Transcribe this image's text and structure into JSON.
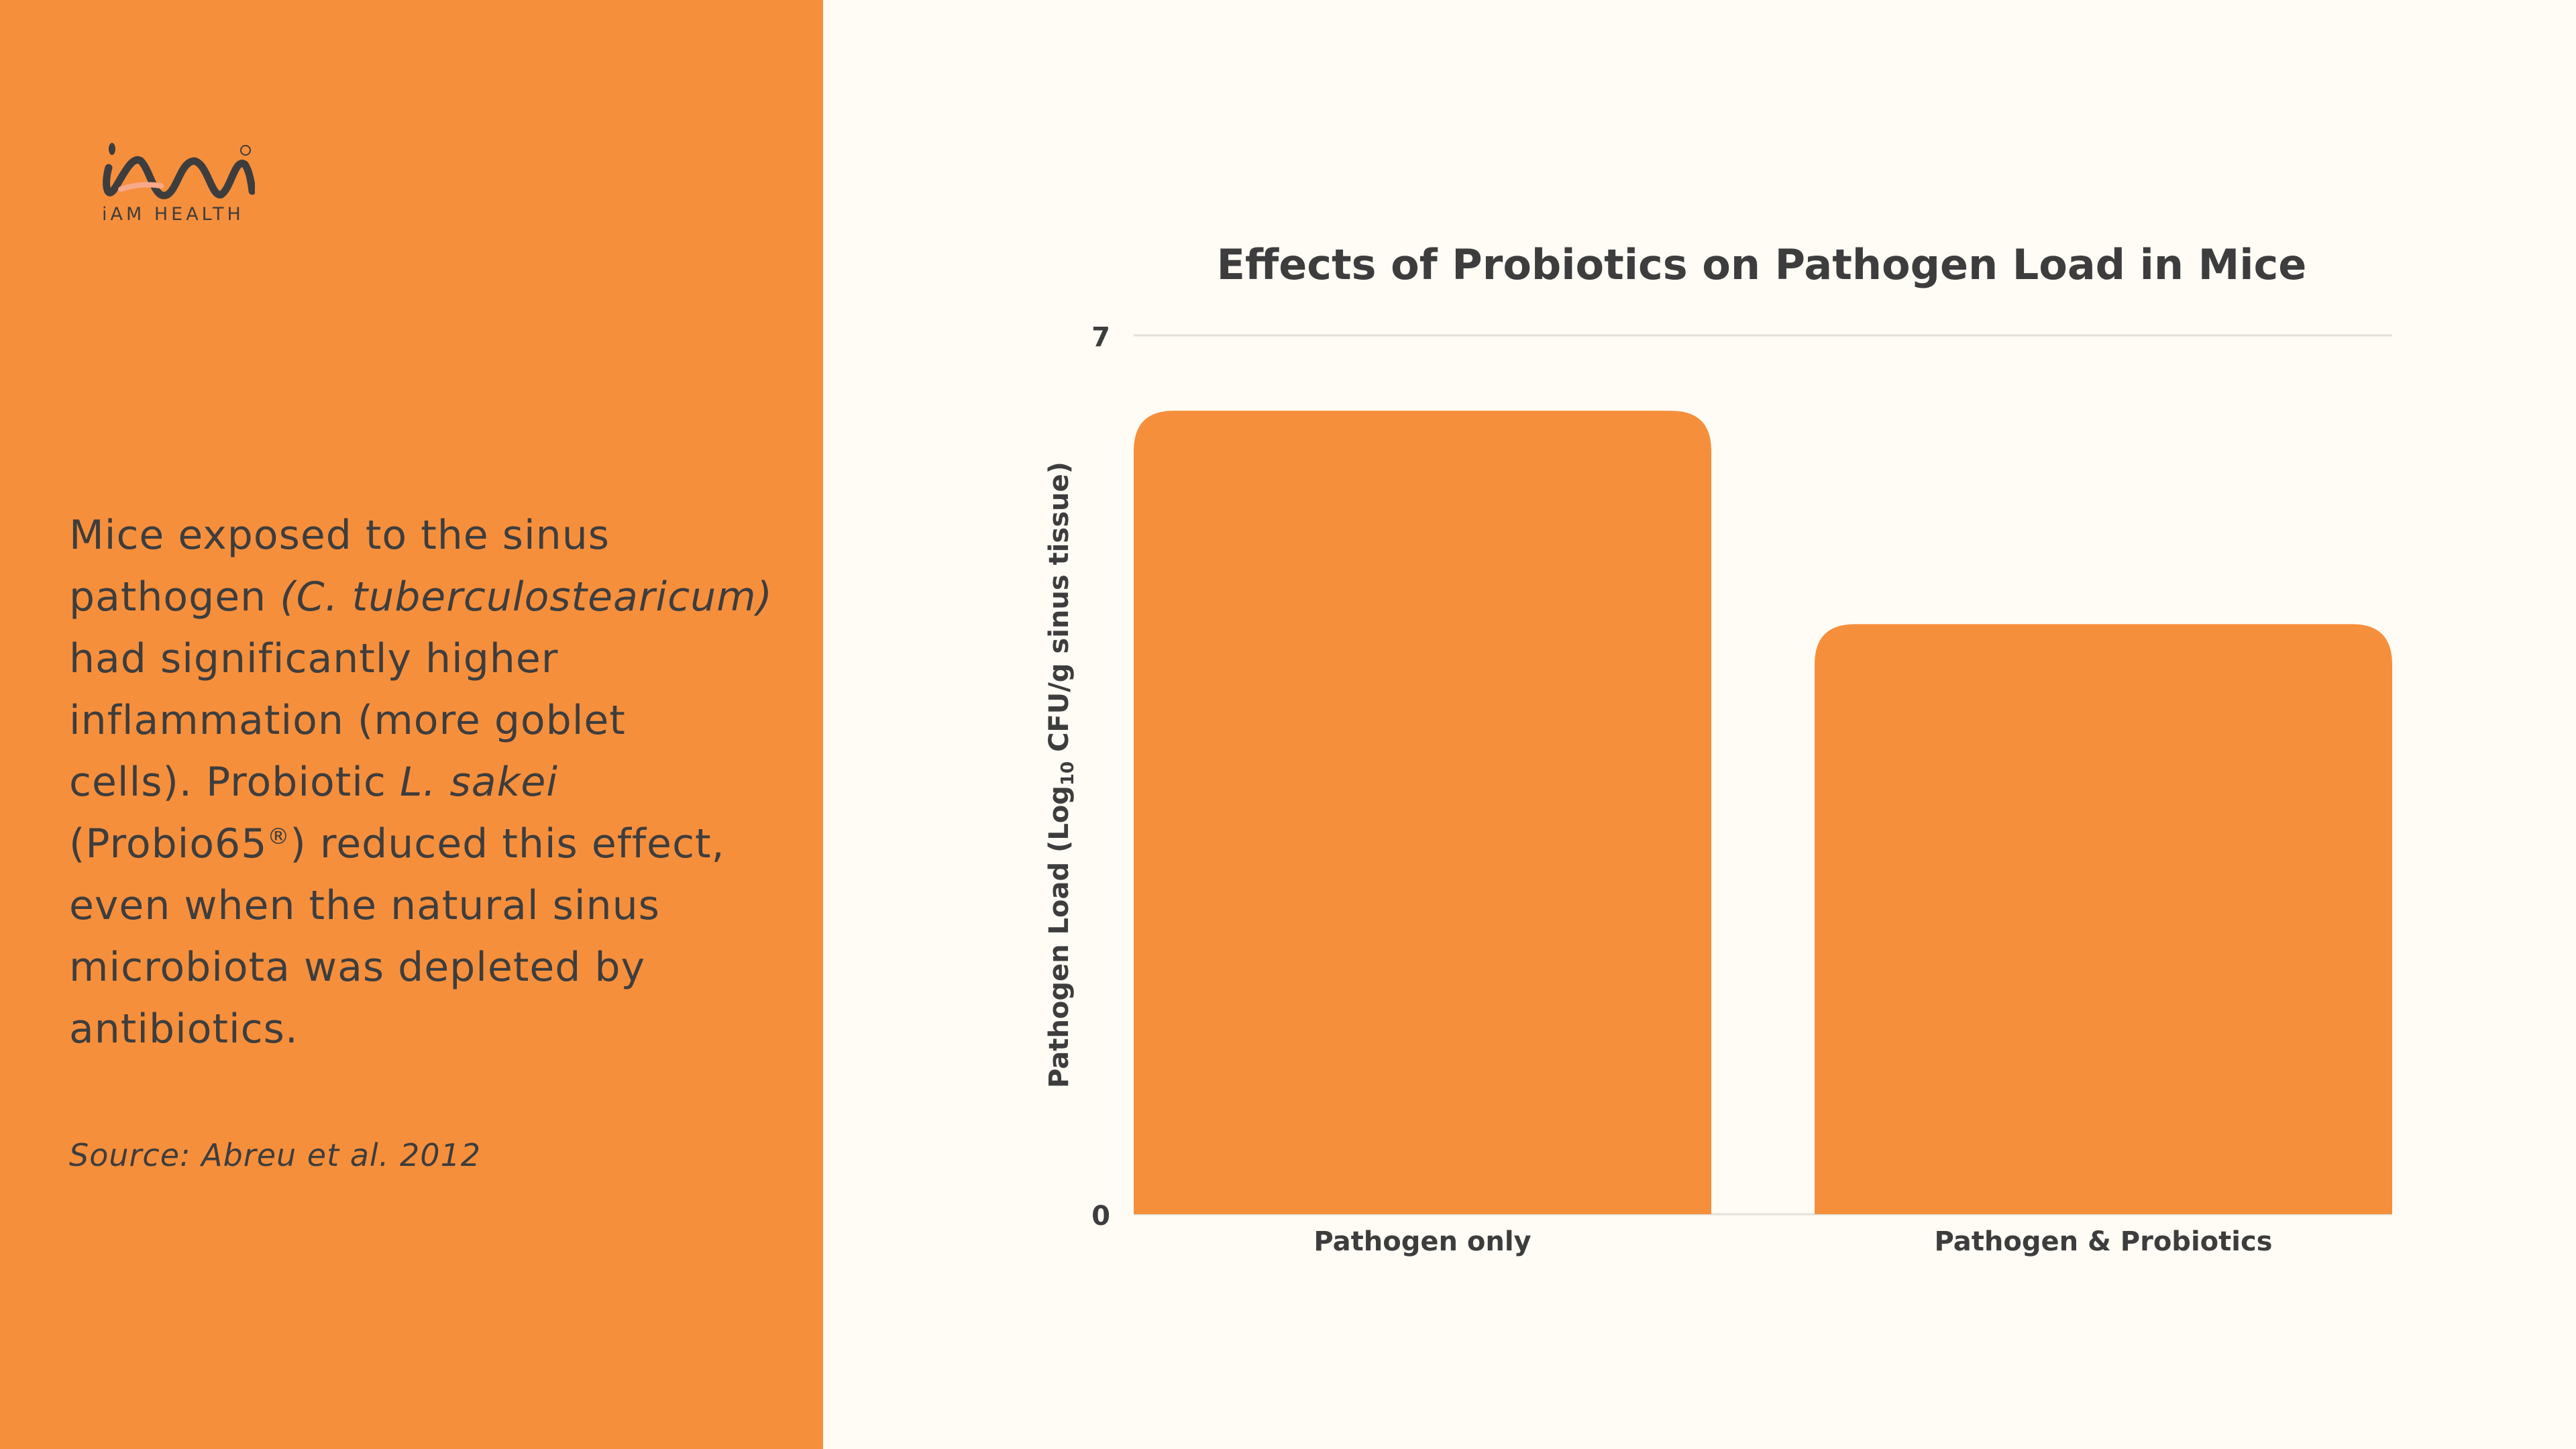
{
  "logo": {
    "brand": "iAM HEALTH",
    "mark": "iAM",
    "registered": "®"
  },
  "body_lines": [
    [
      {
        "t": "Mice exposed to the sinus"
      }
    ],
    [
      {
        "t": "pathogen "
      },
      {
        "t": "(C. tuberculostearicum)",
        "i": true
      }
    ],
    [
      {
        "t": "had significantly higher"
      }
    ],
    [
      {
        "t": "inflammation (more goblet"
      }
    ],
    [
      {
        "t": "cells). Probiotic "
      },
      {
        "t": "L. sakei",
        "i": true
      }
    ],
    [
      {
        "t": "(Probio65"
      },
      {
        "t": "®",
        "sup": true
      },
      {
        "t": ") reduced this effect,"
      }
    ],
    [
      {
        "t": "even when the natural sinus"
      }
    ],
    [
      {
        "t": "microbiota was depleted by"
      }
    ],
    [
      {
        "t": "antibiotics."
      }
    ]
  ],
  "source": "Source: Abreu et al. 2012",
  "colors": {
    "panel": "#F68F3C",
    "bar": "#F68F3C",
    "background": "#FFFCF5",
    "text": "#3d3d3d",
    "grid": "#e2e0da"
  },
  "chart_data": {
    "type": "bar",
    "title": "Effects of Probiotics on Pathogen Load in Mice",
    "ylabel_main": "Pathogen Load (Log",
    "ylabel_sub": "10",
    "ylabel_rest": " CFU/g sinus tissue)",
    "categories": [
      "Pathogen only",
      "Pathogen & Probiotics"
    ],
    "values": [
      6.4,
      4.7
    ],
    "ylim": [
      0,
      7
    ],
    "yticks": [
      "0",
      "7"
    ],
    "grid": true,
    "legend": "none"
  }
}
